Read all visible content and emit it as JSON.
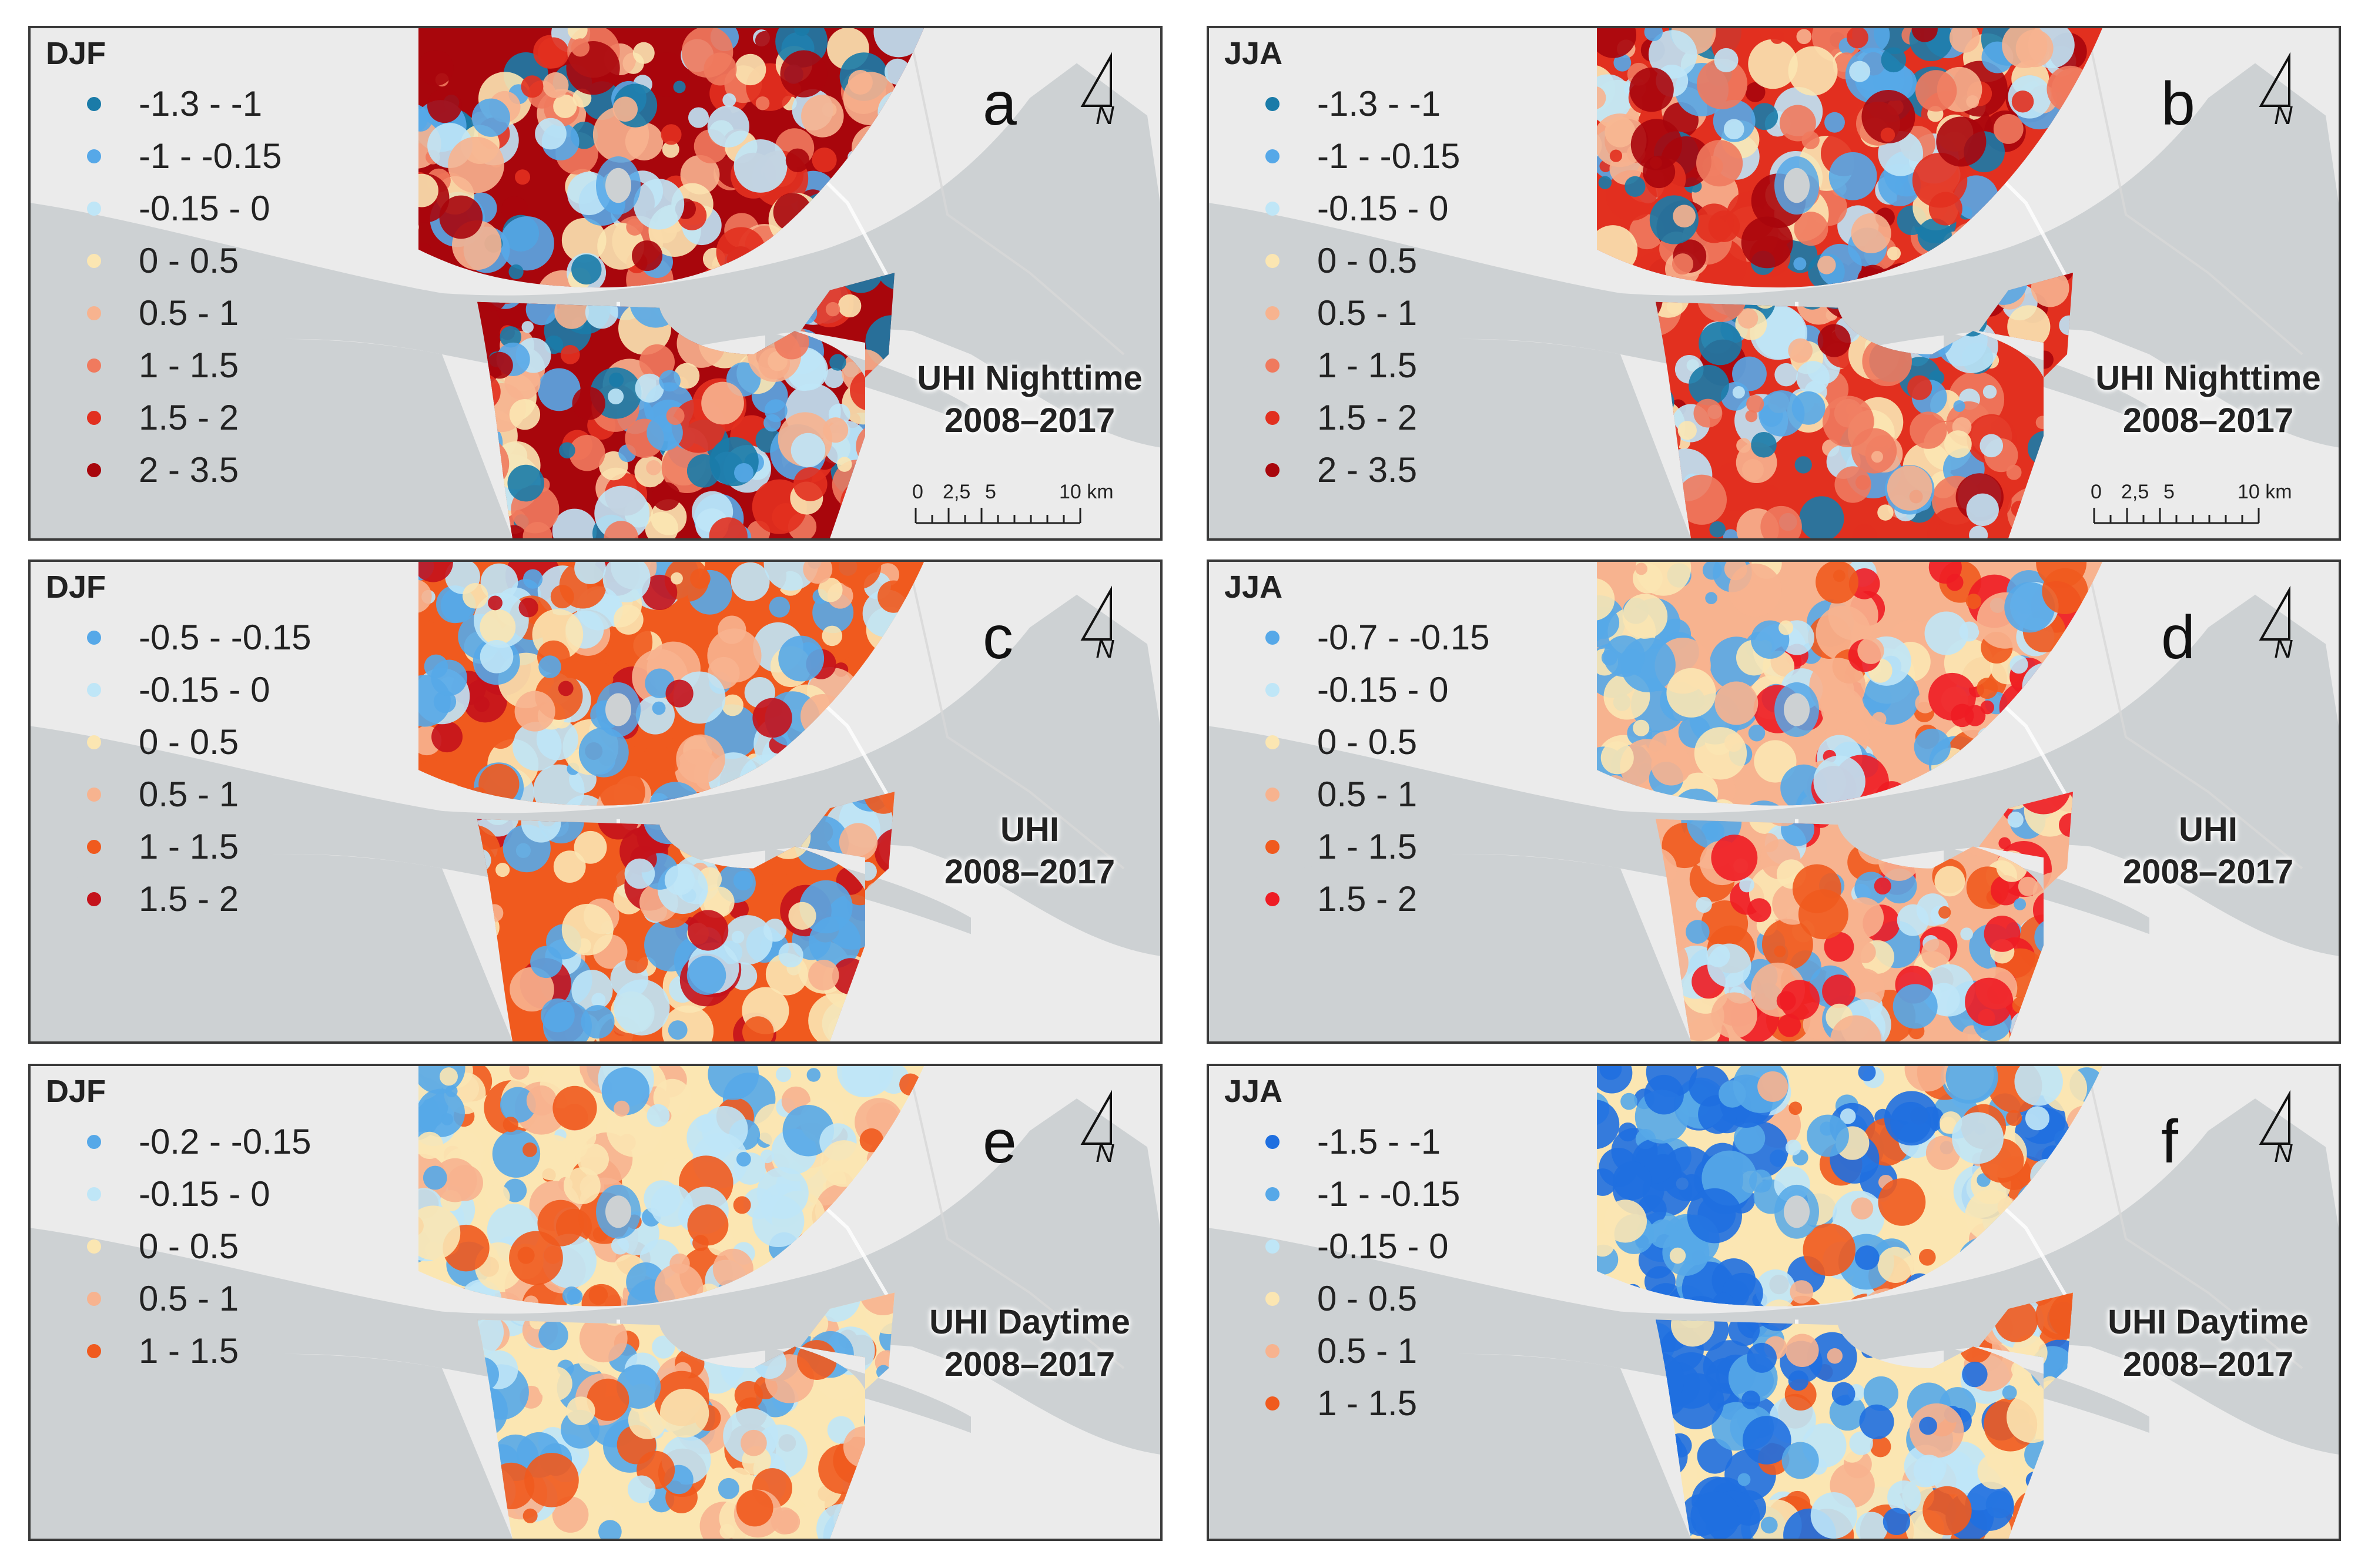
{
  "panels": [
    {
      "id": "a",
      "season": "DJF",
      "letter": "a",
      "title_line1": "UHI Nighttime",
      "title_line2": "2008–2017",
      "legend": [
        {
          "label": "-1.3 - -1",
          "color": "#1a7ba8"
        },
        {
          "label": "-1 - -0.15",
          "color": "#56a8e8"
        },
        {
          "label": "-0.15 - 0",
          "color": "#bfe6f7"
        },
        {
          "label": "0 - 0.5",
          "color": "#fbe6b2"
        },
        {
          "label": "0.5 - 1",
          "color": "#f7b38f"
        },
        {
          "label": "1 - 1.5",
          "color": "#f07a5e"
        },
        {
          "label": "1.5 - 2",
          "color": "#e2301f"
        },
        {
          "label": "2 - 3.5",
          "color": "#a8060c"
        }
      ],
      "scale": {
        "labels": [
          "0",
          "2,5",
          "5",
          "10 km"
        ]
      }
    },
    {
      "id": "b",
      "season": "JJA",
      "letter": "b",
      "title_line1": "UHI Nighttime",
      "title_line2": "2008–2017",
      "legend": [
        {
          "label": "-1.3 - -1",
          "color": "#1a7ba8"
        },
        {
          "label": "-1 - -0.15",
          "color": "#56a8e8"
        },
        {
          "label": "-0.15 - 0",
          "color": "#bfe6f7"
        },
        {
          "label": "0 - 0.5",
          "color": "#fbe6b2"
        },
        {
          "label": "0.5 - 1",
          "color": "#f7b38f"
        },
        {
          "label": "1 - 1.5",
          "color": "#f07a5e"
        },
        {
          "label": "1.5 - 2",
          "color": "#e2301f"
        },
        {
          "label": "2 - 3.5",
          "color": "#a8060c"
        }
      ],
      "scale": {
        "labels": [
          "0",
          "2,5",
          "5",
          "10 km"
        ]
      }
    },
    {
      "id": "c",
      "season": "DJF",
      "letter": "c",
      "title_line1": "UHI",
      "title_line2": "2008–2017",
      "legend": [
        {
          "label": "-0.5 - -0.15",
          "color": "#56a8e8"
        },
        {
          "label": "-0.15 - 0",
          "color": "#bfe6f7"
        },
        {
          "label": "0 - 0.5",
          "color": "#fbe6b2"
        },
        {
          "label": "0.5 - 1",
          "color": "#f7b38f"
        },
        {
          "label": "1 - 1.5",
          "color": "#f05a1e"
        },
        {
          "label": "1.5 - 2",
          "color": "#c4121b"
        }
      ]
    },
    {
      "id": "d",
      "season": "JJA",
      "letter": "d",
      "title_line1": "UHI",
      "title_line2": "2008–2017",
      "legend": [
        {
          "label": "-0.7 - -0.15",
          "color": "#56a8e8"
        },
        {
          "label": "-0.15 - 0",
          "color": "#bfe6f7"
        },
        {
          "label": "0 - 0.5",
          "color": "#fbe6b2"
        },
        {
          "label": "0.5 - 1",
          "color": "#f7b38f"
        },
        {
          "label": "1 - 1.5",
          "color": "#f05a1e"
        },
        {
          "label": "1.5 - 2",
          "color": "#ee1c24"
        }
      ]
    },
    {
      "id": "e",
      "season": "DJF",
      "letter": "e",
      "title_line1": "UHI Daytime",
      "title_line2": "2008–2017",
      "legend": [
        {
          "label": "-0.2 - -0.15",
          "color": "#56a8e8"
        },
        {
          "label": "-0.15 - 0",
          "color": "#bfe6f7"
        },
        {
          "label": "0 - 0.5",
          "color": "#fbe6b2"
        },
        {
          "label": "0.5 - 1",
          "color": "#f7b38f"
        },
        {
          "label": "1 - 1.5",
          "color": "#f05a1e"
        }
      ]
    },
    {
      "id": "f",
      "season": "JJA",
      "letter": "f",
      "title_line1": "UHI Daytime",
      "title_line2": "2008–2017",
      "legend": [
        {
          "label": "-1.5 - -1",
          "color": "#1f6fe0"
        },
        {
          "label": "-1 - -0.15",
          "color": "#56a8e8"
        },
        {
          "label": "-0.15 - 0",
          "color": "#bfe6f7"
        },
        {
          "label": "0 - 0.5",
          "color": "#fbe6b2"
        },
        {
          "label": "0.5 - 1",
          "color": "#f7b38f"
        },
        {
          "label": "1 - 1.5",
          "color": "#f05a1e"
        }
      ]
    }
  ],
  "north_label": "N",
  "colors": {
    "land": "#ebebeb",
    "water": "#cdd1d3",
    "frame": "#3a3a3a"
  }
}
